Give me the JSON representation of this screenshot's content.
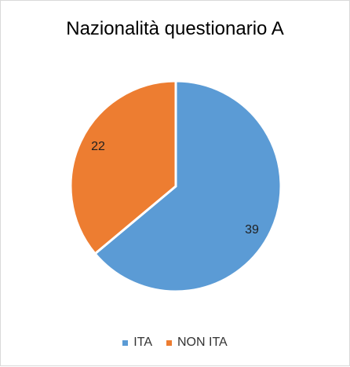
{
  "chart_data": {
    "type": "pie",
    "title": "Nazionalità questionario A",
    "categories": [
      "ITA",
      "NON ITA"
    ],
    "values": [
      39,
      22
    ],
    "data_labels": [
      "39",
      "22"
    ],
    "colors": [
      "#5b9bd5",
      "#ed7d31"
    ],
    "legend_position": "bottom",
    "start_angle_degrees": 0,
    "direction": "clockwise"
  },
  "legend": {
    "items": [
      {
        "label": "ITA",
        "color": "#5b9bd5"
      },
      {
        "label": "NON ITA",
        "color": "#ed7d31"
      }
    ]
  }
}
